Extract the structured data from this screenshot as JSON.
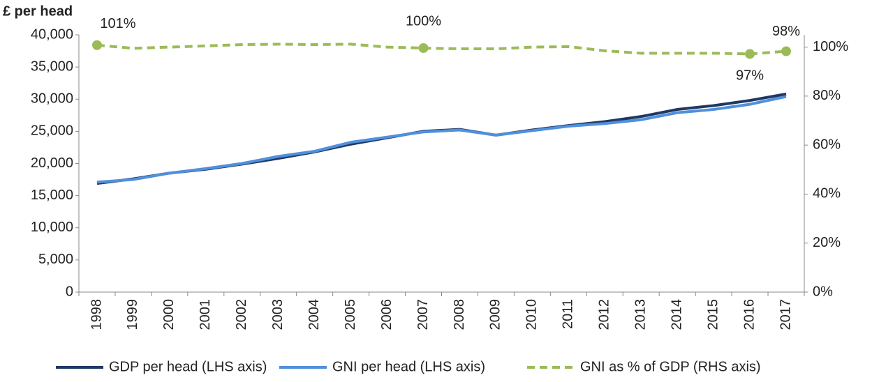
{
  "chart_data": {
    "type": "line",
    "y_axis_label": "£ per head",
    "categories": [
      "1998",
      "1999",
      "2000",
      "2001",
      "2002",
      "2003",
      "2004",
      "2005",
      "2006",
      "2007",
      "2008",
      "2009",
      "2010",
      "2011",
      "2012",
      "2013",
      "2014",
      "2015",
      "2016",
      "2017"
    ],
    "series": [
      {
        "name": "GDP per head (LHS axis)",
        "color": "#1f3864",
        "values": [
          16900,
          17600,
          18500,
          19100,
          19900,
          20800,
          21800,
          23000,
          24000,
          25000,
          25300,
          24400,
          25200,
          25900,
          26500,
          27300,
          28400,
          29000,
          29800,
          30800
        ]
      },
      {
        "name": "GNI per head (LHS axis)",
        "color": "#5090dc",
        "values": [
          17100,
          17500,
          18500,
          19200,
          20000,
          21100,
          21900,
          23300,
          24100,
          24900,
          25200,
          24400,
          25100,
          25800,
          26200,
          26800,
          27900,
          28400,
          29200,
          30400
        ]
      },
      {
        "name": "GNI as % of GDP (RHS axis)",
        "color": "#9bbb59",
        "axis": "y2",
        "dashed": true,
        "values": [
          100.8,
          99.5,
          100,
          100.5,
          101,
          101.2,
          101,
          101.2,
          100,
          99.6,
          99.3,
          99.3,
          100,
          100.2,
          98.5,
          97.5,
          97.5,
          97.5,
          97.2,
          98.3
        ],
        "value_labels": [
          "101%",
          null,
          null,
          null,
          null,
          null,
          null,
          null,
          null,
          "100%",
          null,
          null,
          null,
          null,
          null,
          null,
          null,
          null,
          "97%",
          "98%"
        ]
      }
    ],
    "ylim": [
      0,
      40000
    ],
    "yticks": [
      0,
      {
        "value": 5000,
        "label": "5,000"
      },
      {
        "value": 10000,
        "label": "10,000"
      },
      {
        "value": 15000,
        "label": "15,000"
      },
      {
        "value": 20000,
        "label": "20,000"
      },
      {
        "value": 25000,
        "label": "25,000"
      },
      {
        "value": 30000,
        "label": "30,000"
      },
      {
        "value": 35000,
        "label": "35,000"
      },
      {
        "value": 40000,
        "label": "40,000"
      }
    ],
    "y2lim": [
      0,
      105
    ],
    "y2ticks": [
      {
        "value": 0,
        "label": "0%"
      },
      {
        "value": 20,
        "label": "20%"
      },
      {
        "value": 40,
        "label": "40%"
      },
      {
        "value": 60,
        "label": "60%"
      },
      {
        "value": 80,
        "label": "80%"
      },
      {
        "value": 100,
        "label": "100%"
      }
    ],
    "grid": false,
    "legend": "bottom"
  }
}
